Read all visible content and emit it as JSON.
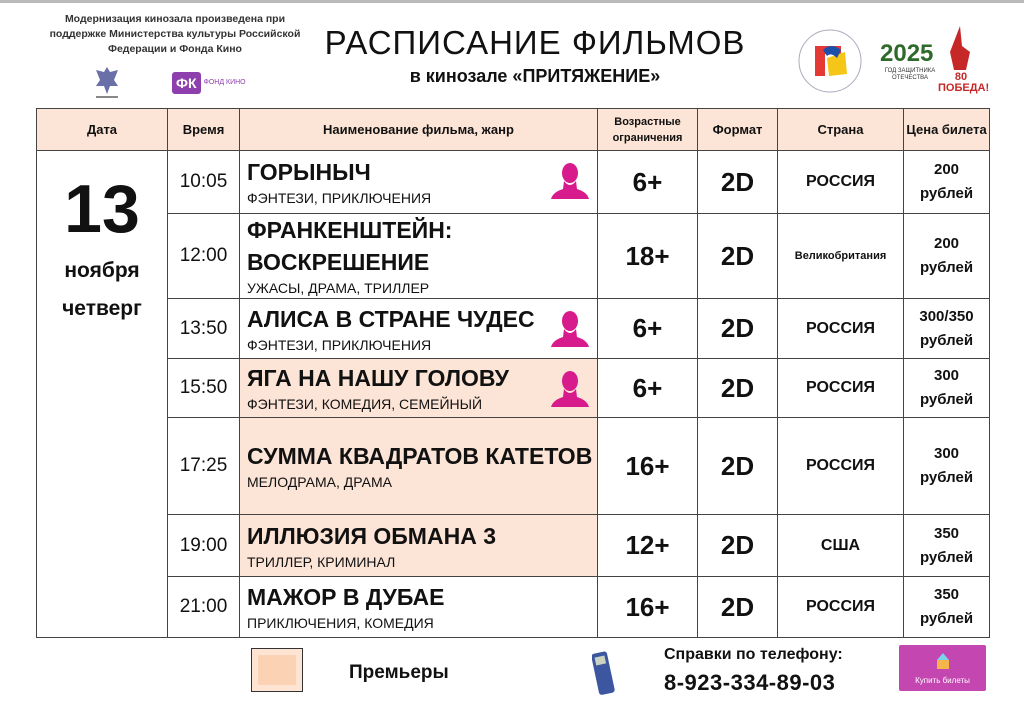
{
  "header": {
    "note": "Модернизация кинозала произведена при поддержке Министерства культуры Российской Федерации и Фонда Кино",
    "title": "РАСПИСАНИЕ ФИЛЬМОВ",
    "subtitle": "в кинозале «ПРИТЯЖЕНИЕ»",
    "fk_logo": "ФК",
    "fk_logo_small": "ФОНД КИНО",
    "year_logo": "2025",
    "year_logo_caption": "ГОД ЗАЩИТНИКА ОТЕЧЕСТВА",
    "victory_logo": "80 ПОБЕДА!"
  },
  "table": {
    "columns": [
      "Дата",
      "Время",
      "Наименование фильма, жанр",
      "Возрастные ограничения",
      "Формат",
      "Страна",
      "Цена билета"
    ],
    "date": {
      "day": "13",
      "month": "ноября",
      "weekday": "четверг"
    },
    "rows": [
      {
        "time": "10:05",
        "title": "ГОРЫНЫЧ",
        "genre": "ФЭНТЕЗИ, ПРИКЛЮЧЕНИЯ",
        "age": "6+",
        "format": "2D",
        "country": "РОССИЯ",
        "price": "200",
        "currency": "рублей",
        "premiere": false,
        "pushkin_card": true
      },
      {
        "time": "12:00",
        "title": "ФРАНКЕНШТЕЙН: ВОСКРЕШЕНИЕ",
        "genre": "УЖАСЫ, ДРАМА, ТРИЛЛЕР",
        "age": "18+",
        "format": "2D",
        "country": "Великобритания",
        "price": "200",
        "currency": "рублей",
        "premiere": false,
        "pushkin_card": false
      },
      {
        "time": "13:50",
        "title": "АЛИСА В СТРАНЕ ЧУДЕС",
        "genre": "ФЭНТЕЗИ, ПРИКЛЮЧЕНИЯ",
        "age": "6+",
        "format": "2D",
        "country": "РОССИЯ",
        "price": "300/350",
        "currency": "рублей",
        "premiere": false,
        "pushkin_card": true
      },
      {
        "time": "15:50",
        "title": "ЯГА НА НАШУ ГОЛОВУ",
        "genre": "ФЭНТЕЗИ, КОМЕДИЯ, СЕМЕЙНЫЙ",
        "age": "6+",
        "format": "2D",
        "country": "РОССИЯ",
        "price": "300",
        "currency": "рублей",
        "premiere": true,
        "pushkin_card": true
      },
      {
        "time": "17:25",
        "title": "СУММА КВАДРАТОВ КАТЕТОВ",
        "genre": "МЕЛОДРАМА, ДРАМА",
        "age": "16+",
        "format": "2D",
        "country": "РОССИЯ",
        "price": "300",
        "currency": "рублей",
        "premiere": true,
        "pushkin_card": false
      },
      {
        "time": "19:00",
        "title": "ИЛЛЮЗИЯ ОБМАНА 3",
        "genre": "ТРИЛЛЕР, КРИМИНАЛ",
        "age": "12+",
        "format": "2D",
        "country": "США",
        "price": "350",
        "currency": "рублей",
        "premiere": true,
        "pushkin_card": false
      },
      {
        "time": "21:00",
        "title": "МАЖОР В ДУБАЕ",
        "genre": "ПРИКЛЮЧЕНИЯ, КОМЕДИЯ",
        "age": "16+",
        "format": "2D",
        "country": "РОССИЯ",
        "price": "350",
        "currency": "рублей",
        "premiere": false,
        "pushkin_card": false
      }
    ]
  },
  "footer": {
    "legend_label": "Премьеры",
    "phone_label": "Справки  по телефону:",
    "phone_number": "8-923-334-89-03",
    "buy_button": "Купить билеты"
  },
  "colors": {
    "header_bg": "#fce4d6",
    "premiere_bg": "#fce4d6",
    "pushkin_icon": "#d81b8c",
    "buy_button": "#c446b0"
  }
}
